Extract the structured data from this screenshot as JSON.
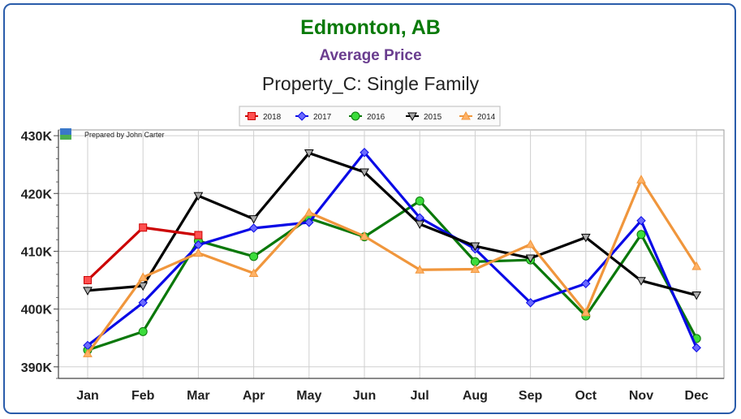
{
  "header": {
    "title": "Edmonton, AB",
    "subtitle": "Average Price",
    "chart_title": "Property_C: Single Family"
  },
  "credit": "Prepared by John Carter",
  "colors": {
    "border": "#2a5caa",
    "title": "#0a7a0a",
    "subtitle": "#6a3d8f"
  },
  "chart_data": {
    "type": "line",
    "title": "Property_C: Single Family",
    "categories": [
      "Jan",
      "Feb",
      "Mar",
      "Apr",
      "May",
      "Jun",
      "Jul",
      "Aug",
      "Sep",
      "Oct",
      "Nov",
      "Dec"
    ],
    "ylim": [
      388000,
      431000
    ],
    "yticks": [
      390000,
      400000,
      410000,
      420000,
      430000
    ],
    "ytick_labels": [
      "390K",
      "400K",
      "410K",
      "420K",
      "430K"
    ],
    "grid": true,
    "legend_position": "top-center",
    "series": [
      {
        "name": "2018",
        "color": "#cc0000",
        "marker": "square",
        "values": [
          405000,
          414100,
          412800,
          null,
          null,
          null,
          null,
          null,
          null,
          null,
          null,
          null
        ]
      },
      {
        "name": "2017",
        "color": "#0a0ae6",
        "marker": "diamond",
        "values": [
          393700,
          401100,
          411100,
          414000,
          415000,
          427100,
          415800,
          410400,
          401100,
          404400,
          415300,
          393300
        ]
      },
      {
        "name": "2016",
        "color": "#0a780a",
        "marker": "circle",
        "values": [
          392900,
          396100,
          411800,
          409100,
          415700,
          412500,
          418700,
          408200,
          408500,
          398800,
          412900,
          394900
        ]
      },
      {
        "name": "2015",
        "color": "#000000",
        "marker": "triangle-down",
        "values": [
          403200,
          404000,
          419600,
          415600,
          427000,
          423700,
          414700,
          410900,
          408800,
          412400,
          404900,
          402400
        ]
      },
      {
        "name": "2014",
        "color": "#f0963c",
        "marker": "triangle-up",
        "values": [
          392300,
          405500,
          409700,
          406200,
          416700,
          412600,
          406800,
          406900,
          411200,
          399400,
          422400,
          407400
        ]
      }
    ]
  }
}
